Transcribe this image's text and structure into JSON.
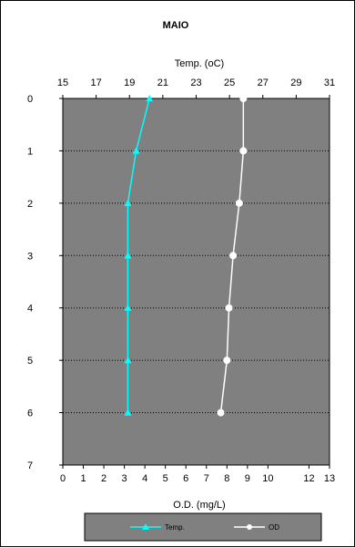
{
  "chart_data": {
    "type": "line",
    "title": "MAIO",
    "top_axis": {
      "label": "Temp. (oC)",
      "range": [
        15,
        31
      ],
      "ticks": [
        15,
        17,
        19,
        21,
        23,
        25,
        27,
        29,
        31
      ]
    },
    "bottom_axis": {
      "label": "O.D. (mg/L)",
      "range": [
        0,
        13
      ],
      "ticks": [
        0,
        1,
        2,
        3,
        4,
        5,
        6,
        7,
        8,
        9,
        10,
        12,
        13
      ]
    },
    "y_axis": {
      "label": "",
      "range": [
        0,
        7
      ],
      "inverted": true,
      "ticks": [
        0,
        1,
        2,
        3,
        4,
        5,
        6,
        7
      ]
    },
    "grid": "horizontal dotted",
    "legend_position": "bottom",
    "series": [
      {
        "name": "Temp.",
        "axis": "top",
        "color": "#00ffff",
        "marker": "triangle",
        "points": [
          [
            20.2,
            0
          ],
          [
            19.4,
            1
          ],
          [
            18.9,
            2
          ],
          [
            18.9,
            3
          ],
          [
            18.9,
            4
          ],
          [
            18.9,
            5
          ],
          [
            18.9,
            6
          ]
        ]
      },
      {
        "name": "OD",
        "axis": "bottom",
        "color": "#ffffff",
        "marker": "circle",
        "points": [
          [
            8.8,
            0
          ],
          [
            8.8,
            1
          ],
          [
            8.6,
            2
          ],
          [
            8.3,
            3
          ],
          [
            8.1,
            4
          ],
          [
            8.0,
            5
          ],
          [
            7.7,
            6
          ]
        ]
      }
    ]
  },
  "colors": {
    "plot_background": "#808080",
    "legend_background": "#808080"
  }
}
